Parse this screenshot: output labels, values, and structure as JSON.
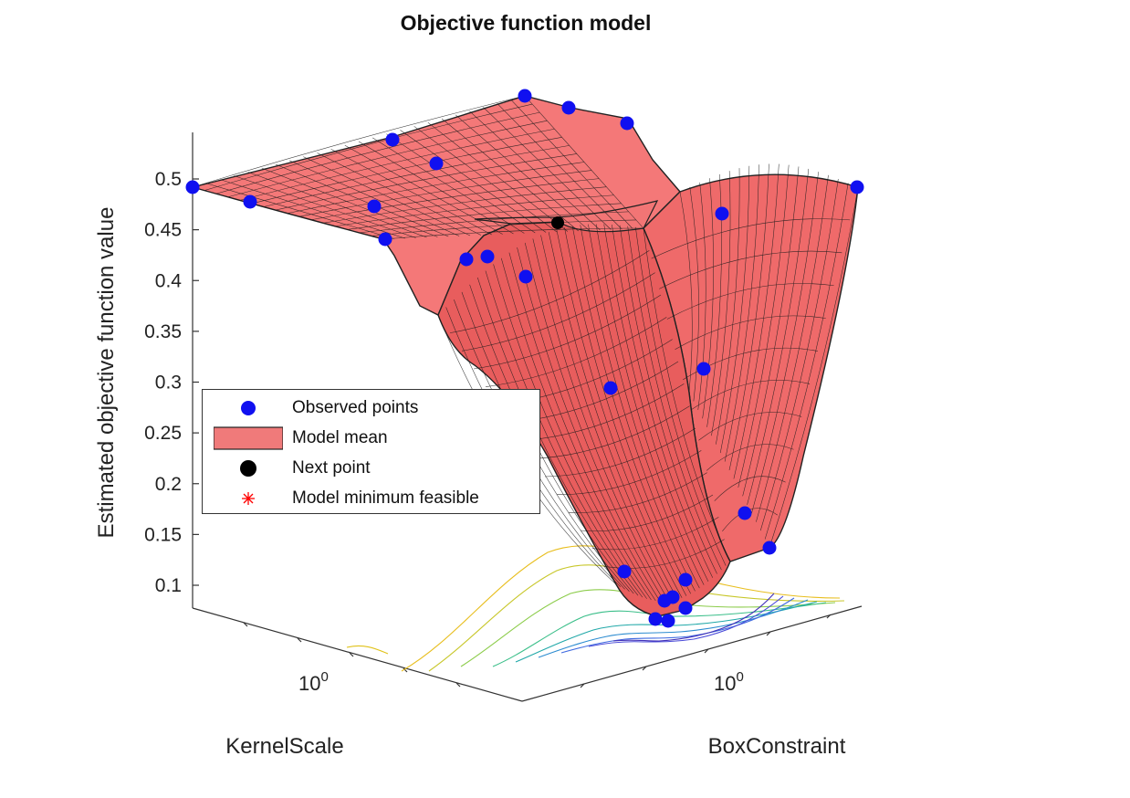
{
  "chart_data": {
    "type": "surface",
    "title": "Objective function model",
    "xlabel": "KernelScale",
    "ylabel": "BoxConstraint",
    "zlabel": "Estimated objective function value",
    "z_ticks": [
      "0.1",
      "0.15",
      "0.2",
      "0.25",
      "0.3",
      "0.35",
      "0.4",
      "0.45",
      "0.5"
    ],
    "z_values": [
      0.1,
      0.15,
      0.2,
      0.25,
      0.3,
      0.35,
      0.4,
      0.45,
      0.5
    ],
    "x_tick_label": "10",
    "x_tick_exp": "0",
    "y_tick_label": "10",
    "y_tick_exp": "0",
    "xscale": "log",
    "yscale": "log",
    "surface_color": "#f26d6d",
    "observed_color": "#1010f0",
    "next_point_color": "#000000",
    "model_min_color": "#ff0000",
    "observed_points_estimated_z": [
      0.49,
      0.475,
      0.47,
      0.44,
      0.42,
      0.42,
      0.4,
      0.51,
      0.535,
      0.555,
      0.545,
      0.53,
      0.46,
      0.49,
      0.31,
      0.29,
      0.17,
      0.13,
      0.11,
      0.1,
      0.085,
      0.08,
      0.075,
      0.07,
      0.07
    ],
    "next_point_estimated_z": 0.455,
    "legend": {
      "position": "inside-left",
      "entries": [
        {
          "label": "Observed points",
          "symbol": "circle"
        },
        {
          "label": "Model mean",
          "symbol": "patch"
        },
        {
          "label": "Next point",
          "symbol": "circle-black"
        },
        {
          "label": "Model minimum feasible",
          "symbol": "asterisk"
        }
      ]
    }
  }
}
